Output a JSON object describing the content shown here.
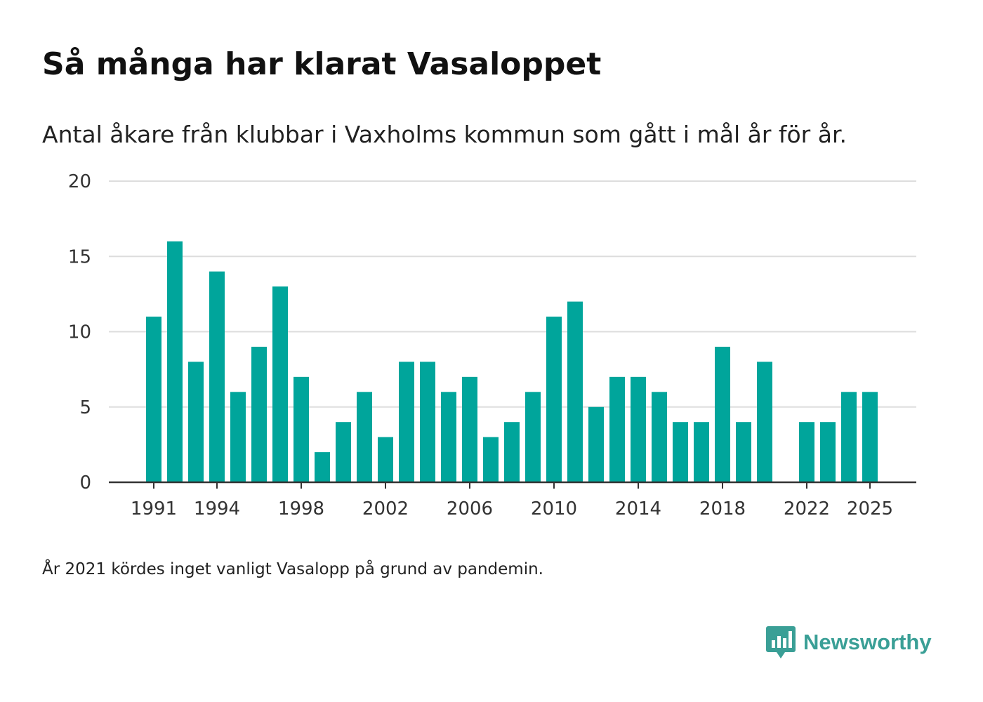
{
  "title": "Så många har klarat Vasaloppet",
  "subtitle": "Antal åkare från klubbar i Vaxholms kommun som gått i mål år för år.",
  "footnote": "År 2021 kördes inget vanligt Vasalopp på grund av pandemin.",
  "brand": {
    "name": "Newsworthy",
    "color": "#3a9f96",
    "logo_icon": "bar-chart-speech-bubble-icon"
  },
  "colors": {
    "bar": "#00a59b",
    "grid": "#dddddd",
    "axis": "#333333",
    "tick_text": "#333333"
  },
  "chart_data": {
    "type": "bar",
    "title": "Så många har klarat Vasaloppet",
    "xlabel": "",
    "ylabel": "",
    "ylim": [
      0,
      20
    ],
    "yticks": [
      0,
      5,
      10,
      15,
      20
    ],
    "xticks": [
      1991,
      1994,
      1998,
      2002,
      2006,
      2010,
      2014,
      2018,
      2022,
      2025
    ],
    "xlim": [
      1991,
      2025
    ],
    "grid": true,
    "categories": [
      1991,
      1992,
      1993,
      1994,
      1995,
      1996,
      1997,
      1998,
      1999,
      2000,
      2001,
      2002,
      2003,
      2004,
      2005,
      2006,
      2007,
      2008,
      2009,
      2010,
      2011,
      2012,
      2013,
      2014,
      2015,
      2016,
      2017,
      2018,
      2019,
      2020,
      2021,
      2022,
      2023,
      2024,
      2025
    ],
    "values": [
      11,
      16,
      8,
      14,
      6,
      9,
      13,
      7,
      2,
      4,
      6,
      3,
      8,
      8,
      6,
      7,
      3,
      4,
      6,
      11,
      12,
      5,
      7,
      7,
      6,
      4,
      4,
      9,
      4,
      8,
      null,
      4,
      4,
      6,
      6
    ]
  }
}
